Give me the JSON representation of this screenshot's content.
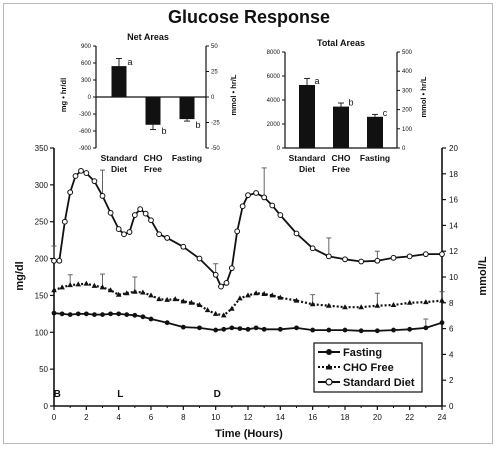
{
  "title": "Glucose Response",
  "main": {
    "xlabel": "Time (Hours)",
    "ylabel_left": "mg/dl",
    "ylabel_right": "mmol/L",
    "xlim": [
      0,
      24
    ],
    "ylim_left": [
      0,
      350
    ],
    "ylim_right": [
      0,
      20
    ],
    "xticks": [
      "0",
      "2",
      "4",
      "6",
      "8",
      "10",
      "12",
      "14",
      "16",
      "18",
      "20",
      "22",
      "24"
    ],
    "yticks_left": [
      "0",
      "50",
      "100",
      "150",
      "200",
      "250",
      "300",
      "350"
    ],
    "yticks_right": [
      "0",
      "2",
      "4",
      "6",
      "8",
      "10",
      "12",
      "14",
      "16",
      "18",
      "20"
    ],
    "meal_markers": [
      {
        "label": "B",
        "time": 0.2
      },
      {
        "label": "L",
        "time": 4.1
      },
      {
        "label": "D",
        "time": 10.1
      }
    ],
    "legend": [
      "Fasting",
      "CHO Free",
      "Standard Diet"
    ],
    "legend_position": "bottom-right"
  },
  "inset_net": {
    "title": "Net Areas",
    "ylabel_left": "mg • hr/dl",
    "ylabel_right": "mmol • hr/L",
    "yticks_left": [
      "900",
      "600",
      "300",
      "0",
      "-300",
      "-600",
      "-900"
    ],
    "yticks_right": [
      "50",
      "25",
      "0",
      "-25",
      "-50"
    ],
    "categories": [
      "Standard Diet",
      "CHO Free",
      "Fasting"
    ],
    "cat_line1": [
      "Standard",
      "CHO",
      "Fasting"
    ],
    "cat_line2": [
      "Diet",
      "Free",
      ""
    ]
  },
  "inset_total": {
    "title": "Total Areas",
    "ylabel_right": "mmol • hr/L",
    "yticks_left": [
      "8000",
      "6000",
      "4000",
      "2000",
      "0"
    ],
    "yticks_right": [
      "500",
      "400",
      "300",
      "200",
      "100",
      "0"
    ],
    "categories": [
      "Standard Diet",
      "CHO Free",
      "Fasting"
    ],
    "cat_line1": [
      "Standard",
      "CHO",
      "Fasting"
    ],
    "cat_line2": [
      "Diet",
      "Free",
      ""
    ]
  },
  "chart_data": [
    {
      "type": "line",
      "title": "Glucose Response",
      "xlabel": "Time (Hours)",
      "ylabel": "mg/dl",
      "ylabel_right": "mmol/L",
      "xlim": [
        0,
        24
      ],
      "ylim": [
        0,
        350
      ],
      "grid": false,
      "series": [
        {
          "name": "Standard Diet",
          "color": "#111111",
          "marker": "open-circle",
          "style": "solid",
          "x": [
            0,
            0.33,
            0.67,
            1,
            1.33,
            1.67,
            2,
            2.5,
            3,
            3.5,
            4,
            4.33,
            4.67,
            5,
            5.33,
            5.67,
            6,
            6.5,
            7,
            8,
            9,
            10,
            10.33,
            10.67,
            11,
            11.33,
            11.67,
            12,
            12.5,
            13,
            13.5,
            14,
            15,
            16,
            17,
            18,
            19,
            20,
            21,
            22,
            23,
            24
          ],
          "y": [
            197,
            197,
            250,
            290,
            312,
            319,
            316,
            305,
            285,
            262,
            240,
            233,
            236,
            259,
            267,
            261,
            252,
            233,
            228,
            216,
            200,
            178,
            162,
            167,
            187,
            237,
            271,
            286,
            289,
            283,
            272,
            259,
            234,
            214,
            203,
            199,
            196,
            197,
            201,
            203,
            206,
            206
          ],
          "error_up": [
            20,
            0,
            0,
            0,
            0,
            0,
            0,
            0,
            35,
            0,
            0,
            0,
            0,
            0,
            0,
            0,
            0,
            0,
            0,
            0,
            0,
            15,
            0,
            0,
            0,
            0,
            0,
            0,
            0,
            40,
            0,
            0,
            0,
            0,
            25,
            0,
            0,
            13,
            0,
            0,
            0,
            0
          ]
        },
        {
          "name": "CHO Free",
          "color": "#111111",
          "marker": "filled-triangle",
          "style": "dotted",
          "x": [
            0,
            0.5,
            1,
            1.5,
            2,
            2.5,
            3,
            3.5,
            4,
            4.5,
            5,
            5.5,
            6,
            6.5,
            7,
            7.5,
            8,
            8.5,
            9,
            9.5,
            10,
            10.5,
            11,
            11.5,
            12,
            12.5,
            13,
            13.5,
            14,
            15,
            16,
            17,
            18,
            19,
            20,
            21,
            22,
            23,
            24
          ],
          "y": [
            157,
            161,
            164,
            165,
            166,
            163,
            161,
            157,
            151,
            153,
            155,
            154,
            150,
            145,
            144,
            145,
            142,
            140,
            137,
            130,
            125,
            123,
            132,
            146,
            150,
            153,
            152,
            150,
            147,
            143,
            138,
            136,
            134,
            134,
            136,
            137,
            140,
            141,
            143
          ],
          "error_up": [
            0,
            0,
            14,
            0,
            0,
            0,
            18,
            0,
            0,
            0,
            20,
            0,
            0,
            0,
            0,
            0,
            0,
            0,
            0,
            0,
            0,
            0,
            0,
            0,
            0,
            0,
            0,
            0,
            0,
            0,
            13,
            0,
            0,
            0,
            17,
            0,
            0,
            0,
            12
          ]
        },
        {
          "name": "Fasting",
          "color": "#111111",
          "marker": "filled-circle",
          "style": "solid",
          "x": [
            0,
            0.5,
            1,
            1.5,
            2,
            2.5,
            3,
            3.5,
            4,
            4.5,
            5,
            5.5,
            6,
            7,
            8,
            9,
            10,
            10.5,
            11,
            11.5,
            12,
            12.5,
            13,
            14,
            15,
            16,
            17,
            18,
            19,
            20,
            21,
            22,
            23,
            24
          ],
          "y": [
            126,
            125,
            124,
            125,
            125,
            124,
            124,
            125,
            125,
            124,
            123,
            121,
            118,
            113,
            107,
            106,
            103,
            104,
            106,
            105,
            104,
            106,
            104,
            104,
            106,
            103,
            103,
            103,
            102,
            102,
            103,
            104,
            106,
            113
          ],
          "error_up": [
            0,
            0,
            0,
            0,
            0,
            0,
            0,
            0,
            0,
            0,
            0,
            0,
            0,
            0,
            0,
            0,
            0,
            0,
            0,
            0,
            0,
            0,
            0,
            0,
            0,
            0,
            0,
            0,
            0,
            0,
            0,
            0,
            12,
            0
          ]
        }
      ]
    },
    {
      "type": "bar",
      "title": "Net Areas",
      "ylabel": "mg • hr/dl",
      "ylabel_right": "mmol • hr/L",
      "ylim": [
        -900,
        900
      ],
      "ylim_right": [
        -50,
        50
      ],
      "categories": [
        "Standard Diet",
        "CHO Free",
        "Fasting"
      ],
      "values": [
        545,
        -490,
        -390
      ],
      "errors": [
        135,
        85,
        35
      ],
      "significance": [
        "a",
        "b",
        "b"
      ]
    },
    {
      "type": "bar",
      "title": "Total Areas",
      "ylabel_right": "mmol • hr/L",
      "ylim": [
        0,
        8000
      ],
      "ylim_right": [
        0,
        500
      ],
      "categories": [
        "Standard Diet",
        "CHO Free",
        "Fasting"
      ],
      "values": [
        5250,
        3450,
        2600
      ],
      "errors": [
        550,
        300,
        200
      ],
      "significance": [
        "a",
        "b",
        "c"
      ]
    }
  ]
}
